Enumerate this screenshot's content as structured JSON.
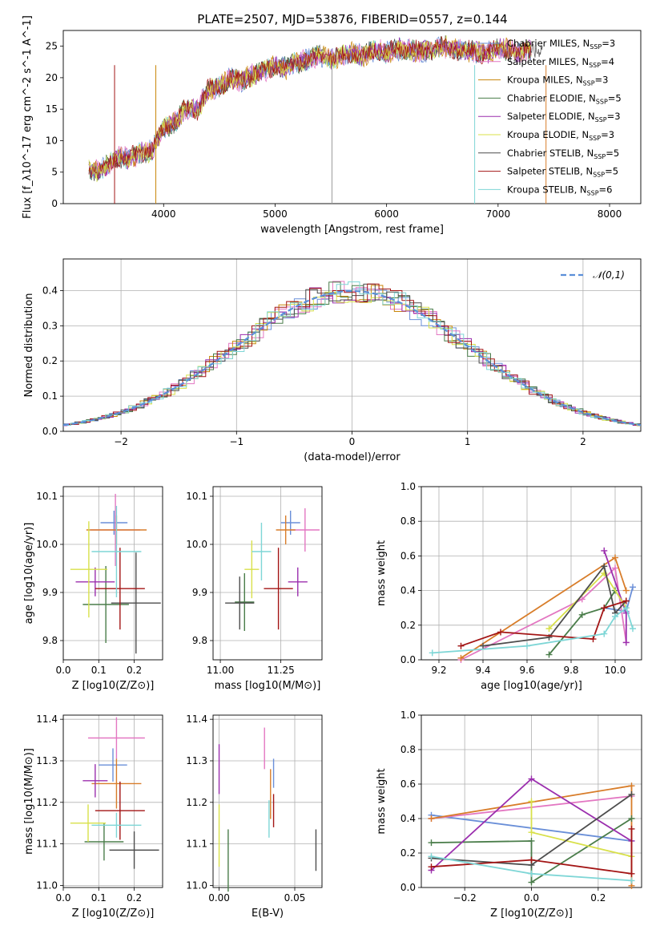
{
  "figure": {
    "title": "PLATE=2507, MJD=53876, FIBERID=0557, z=0.144"
  },
  "legend_entries": [
    {
      "label": "Chabrier MILES, N",
      "sub": "SSP",
      "suffix": "=3",
      "color": "#6a8fd8"
    },
    {
      "label": "Salpeter MILES, N",
      "sub": "SSP",
      "suffix": "=4",
      "color": "#e377c2"
    },
    {
      "label": "Kroupa MILES, N",
      "sub": "SSP",
      "suffix": "=3",
      "color": "#c8860a"
    },
    {
      "label": "Chabrier ELODIE, N",
      "sub": "SSP",
      "suffix": "=5",
      "color": "#4a7d4a"
    },
    {
      "label": "Salpeter ELODIE, N",
      "sub": "SSP",
      "suffix": "=3",
      "color": "#9b2fae"
    },
    {
      "label": "Kroupa ELODIE, N",
      "sub": "SSP",
      "suffix": "=3",
      "color": "#d8e04a"
    },
    {
      "label": "Chabrier STELIB, N",
      "sub": "SSP",
      "suffix": "=5",
      "color": "#4d4d4d"
    },
    {
      "label": "Salpeter STELIB, N",
      "sub": "SSP",
      "suffix": "=5",
      "color": "#a31515"
    },
    {
      "label": "Kroupa STELIB, N",
      "sub": "SSP",
      "suffix": "=6",
      "color": "#7ed6d6"
    }
  ],
  "chart_data": [
    {
      "id": "spectrum",
      "type": "line",
      "xlabel": "wavelength [Angstrom, rest frame]",
      "ylabel": "Flux [f_λ10^-17 erg cm^-2 s^-1 A^-1]",
      "xlim": [
        3100,
        8280
      ],
      "ylim": [
        0,
        27.5
      ],
      "xticks": [
        4000,
        5000,
        6000,
        7000,
        8000
      ],
      "yticks": [
        0,
        5,
        10,
        15,
        20,
        25
      ],
      "x": [
        3330,
        3400,
        3500,
        3600,
        3700,
        3800,
        3900,
        4000,
        4100,
        4200,
        4300,
        4400,
        4500,
        4600,
        4700,
        4800,
        4900,
        5000,
        5100,
        5200,
        5300,
        5400,
        5500,
        5600,
        5700,
        5800,
        5900,
        6000,
        6100,
        6200,
        6300,
        6400,
        6500,
        6600,
        6700,
        6800,
        6900,
        7000,
        7100,
        7200,
        7300,
        7400
      ],
      "y": [
        5.5,
        5.2,
        6.0,
        7.5,
        7.2,
        8.0,
        8.5,
        12.0,
        13.0,
        15.0,
        15.0,
        18.0,
        18.5,
        20.0,
        19.5,
        20.5,
        21.0,
        22.0,
        21.5,
        22.5,
        23.0,
        23.5,
        23.0,
        23.5,
        24.0,
        23.5,
        24.5,
        24.0,
        24.5,
        24.5,
        24.0,
        24.5,
        25.0,
        24.5,
        24.5,
        24.0,
        24.0,
        24.5,
        24.5,
        24.0,
        24.5,
        25.0
      ],
      "grid": false,
      "legend": "top-right"
    },
    {
      "id": "residual-hist",
      "type": "histogram",
      "xlabel": "(data-model)/error",
      "ylabel": "Normed distribution",
      "xlim": [
        -2.5,
        2.5
      ],
      "ylim": [
        0,
        0.49
      ],
      "xticks": [
        -2,
        -1,
        0,
        1,
        2
      ],
      "yticks": [
        0.0,
        0.1,
        0.2,
        0.3,
        0.4
      ],
      "grid": true,
      "reference": {
        "name": "𝒩(0,1)",
        "mean": 0,
        "sigma": 1,
        "color": "#5b8fd9"
      },
      "legend": "top-right"
    },
    {
      "id": "age-vs-Z",
      "type": "scatter",
      "xlabel": "Z [log10(Z/Z⊙)]",
      "ylabel": "age [log10(age/yr)]",
      "xlim": [
        0,
        0.28
      ],
      "ylim": [
        9.76,
        10.12
      ],
      "xticks": [
        0.0,
        0.1,
        0.2
      ],
      "yticks": [
        9.8,
        9.9,
        10.0,
        10.1
      ],
      "grid": true,
      "points": [
        {
          "x": 0.143,
          "y": 10.045,
          "xe": 0.038,
          "ye": 0.025,
          "color": "#6a8fd8"
        },
        {
          "x": 0.147,
          "y": 10.03,
          "xe": 0.07,
          "ye": 0.075,
          "color": "#e377c2"
        },
        {
          "x": 0.15,
          "y": 10.03,
          "xe": 0.085,
          "ye": 0.03,
          "color": "#d87d2a"
        },
        {
          "x": 0.12,
          "y": 9.875,
          "xe": 0.065,
          "ye": 0.08,
          "color": "#4a7d4a"
        },
        {
          "x": 0.09,
          "y": 9.922,
          "xe": 0.055,
          "ye": 0.03,
          "color": "#9b2fae"
        },
        {
          "x": 0.072,
          "y": 9.948,
          "xe": 0.052,
          "ye": 0.1,
          "color": "#d8e04a"
        },
        {
          "x": 0.205,
          "y": 9.878,
          "xe": 0.07,
          "ye": 0.105,
          "color": "#4d4d4d"
        },
        {
          "x": 0.16,
          "y": 9.908,
          "xe": 0.07,
          "ye": 0.085,
          "color": "#a31515"
        },
        {
          "x": 0.15,
          "y": 9.985,
          "xe": 0.07,
          "ye": 0.095,
          "color": "#7ed6d6"
        }
      ]
    },
    {
      "id": "age-vs-mass",
      "type": "scatter",
      "xlabel": "mass [log10(M/M⊙)]",
      "ylabel": "",
      "xlim": [
        10.97,
        11.42
      ],
      "ylim": [
        9.76,
        10.12
      ],
      "xticks": [
        11.0,
        11.25
      ],
      "yticks": [
        9.8,
        9.9,
        10.0,
        10.1
      ],
      "grid": true,
      "points": [
        {
          "x": 11.29,
          "y": 10.045,
          "xe": 0.04,
          "ye": 0.025,
          "color": "#6a8fd8"
        },
        {
          "x": 11.35,
          "y": 10.03,
          "xe": 0.06,
          "ye": 0.045,
          "color": "#e377c2"
        },
        {
          "x": 11.27,
          "y": 10.03,
          "xe": 0.04,
          "ye": 0.03,
          "color": "#d87d2a"
        },
        {
          "x": 11.1,
          "y": 9.88,
          "xe": 0.04,
          "ye": 0.06,
          "color": "#4a7d4a"
        },
        {
          "x": 11.32,
          "y": 9.922,
          "xe": 0.04,
          "ye": 0.03,
          "color": "#9b2fae"
        },
        {
          "x": 11.13,
          "y": 9.948,
          "xe": 0.03,
          "ye": 0.06,
          "color": "#d8e04a"
        },
        {
          "x": 11.08,
          "y": 9.878,
          "xe": 0.06,
          "ye": 0.055,
          "color": "#4d4d4d"
        },
        {
          "x": 11.24,
          "y": 9.908,
          "xe": 0.06,
          "ye": 0.085,
          "color": "#a31515"
        },
        {
          "x": 11.17,
          "y": 9.985,
          "xe": 0.04,
          "ye": 0.06,
          "color": "#7ed6d6"
        }
      ]
    },
    {
      "id": "weight-vs-age",
      "type": "line",
      "xlabel": "age [log10(age/yr)]",
      "ylabel": "mass weight",
      "xlim": [
        9.12,
        10.12
      ],
      "ylim": [
        0,
        1.0
      ],
      "xticks": [
        9.2,
        9.4,
        9.6,
        9.8,
        10.0
      ],
      "yticks": [
        0.0,
        0.2,
        0.4,
        0.6,
        0.8,
        1.0
      ],
      "grid": true,
      "series": [
        {
          "color": "#6a8fd8",
          "x": [
            9.95,
            10.05,
            10.08
          ],
          "y": [
            0.3,
            0.28,
            0.42
          ]
        },
        {
          "color": "#e377c2",
          "x": [
            9.3,
            9.85,
            10.0,
            10.05
          ],
          "y": [
            0.0,
            0.35,
            0.53,
            0.1
          ]
        },
        {
          "color": "#d87d2a",
          "x": [
            9.3,
            10.0,
            10.05
          ],
          "y": [
            0.01,
            0.59,
            0.4
          ]
        },
        {
          "color": "#4a7d4a",
          "x": [
            9.7,
            9.85,
            9.95,
            10.0
          ],
          "y": [
            0.03,
            0.26,
            0.3,
            0.4
          ]
        },
        {
          "color": "#9b2fae",
          "x": [
            9.95,
            10.05,
            10.05
          ],
          "y": [
            0.63,
            0.27,
            0.1
          ]
        },
        {
          "color": "#d8e04a",
          "x": [
            9.7,
            9.95,
            10.05
          ],
          "y": [
            0.18,
            0.5,
            0.3
          ]
        },
        {
          "color": "#4d4d4d",
          "x": [
            9.4,
            9.7,
            9.95,
            10.0,
            10.05
          ],
          "y": [
            0.08,
            0.13,
            0.54,
            0.27,
            0.34
          ]
        },
        {
          "color": "#a31515",
          "x": [
            9.3,
            9.48,
            9.9,
            9.95,
            10.05
          ],
          "y": [
            0.08,
            0.16,
            0.12,
            0.3,
            0.34
          ]
        },
        {
          "color": "#7ed6d6",
          "x": [
            9.17,
            9.6,
            9.95,
            10.0,
            10.05,
            10.08
          ],
          "y": [
            0.04,
            0.08,
            0.15,
            0.25,
            0.3,
            0.18
          ]
        }
      ]
    },
    {
      "id": "mass-vs-Z",
      "type": "scatter",
      "xlabel": "Z [log10(Z/Z⊙)]",
      "ylabel": "mass [log10(M/M⊙)]",
      "xlim": [
        0,
        0.28
      ],
      "ylim": [
        10.995,
        11.41
      ],
      "xticks": [
        0.0,
        0.1,
        0.2
      ],
      "yticks": [
        11.0,
        11.1,
        11.2,
        11.3,
        11.4
      ],
      "grid": true,
      "points": [
        {
          "x": 0.14,
          "y": 11.29,
          "xe": 0.04,
          "ye": 0.04,
          "color": "#6a8fd8"
        },
        {
          "x": 0.15,
          "y": 11.355,
          "xe": 0.08,
          "ye": 0.05,
          "color": "#e377c2"
        },
        {
          "x": 0.15,
          "y": 11.245,
          "xe": 0.07,
          "ye": 0.06,
          "color": "#d87d2a"
        },
        {
          "x": 0.115,
          "y": 11.105,
          "xe": 0.055,
          "ye": 0.045,
          "color": "#4a7d4a"
        },
        {
          "x": 0.09,
          "y": 11.252,
          "xe": 0.035,
          "ye": 0.04,
          "color": "#9b2fae"
        },
        {
          "x": 0.07,
          "y": 11.15,
          "xe": 0.05,
          "ye": 0.045,
          "color": "#d8e04a"
        },
        {
          "x": 0.2,
          "y": 11.085,
          "xe": 0.07,
          "ye": 0.045,
          "color": "#4d4d4d"
        },
        {
          "x": 0.16,
          "y": 11.18,
          "xe": 0.07,
          "ye": 0.07,
          "color": "#a31515"
        },
        {
          "x": 0.15,
          "y": 11.145,
          "xe": 0.07,
          "ye": 0.03,
          "color": "#7ed6d6"
        }
      ]
    },
    {
      "id": "mass-vs-EBV",
      "type": "scatter",
      "xlabel": "E(B-V)",
      "ylabel": "",
      "xlim": [
        -0.004,
        0.068
      ],
      "ylim": [
        10.995,
        11.41
      ],
      "xticks": [
        0.0,
        0.05
      ],
      "yticks": [
        11.0,
        11.1,
        11.2,
        11.3,
        11.4
      ],
      "grid": true,
      "points": [
        {
          "x": 0.036,
          "y": 11.27,
          "xe": 0.0,
          "ye": 0.035,
          "color": "#6a8fd8"
        },
        {
          "x": 0.03,
          "y": 11.33,
          "xe": 0.0,
          "ye": 0.05,
          "color": "#e377c2"
        },
        {
          "x": 0.034,
          "y": 11.22,
          "xe": 0.0,
          "ye": 0.06,
          "color": "#d87d2a"
        },
        {
          "x": 0.006,
          "y": 11.06,
          "xe": 0.0,
          "ye": 0.075,
          "color": "#4a7d4a"
        },
        {
          "x": 0.0,
          "y": 11.28,
          "xe": 0.0,
          "ye": 0.06,
          "color": "#9b2fae"
        },
        {
          "x": 0.0,
          "y": 11.12,
          "xe": 0.0,
          "ye": 0.075,
          "color": "#d8e04a"
        },
        {
          "x": 0.064,
          "y": 11.085,
          "xe": 0.0,
          "ye": 0.05,
          "color": "#4d4d4d"
        },
        {
          "x": 0.036,
          "y": 11.18,
          "xe": 0.0,
          "ye": 0.04,
          "color": "#a31515"
        },
        {
          "x": 0.033,
          "y": 11.16,
          "xe": 0.0,
          "ye": 0.045,
          "color": "#7ed6d6"
        }
      ]
    },
    {
      "id": "weight-vs-Z",
      "type": "line",
      "xlabel": "Z [log10(Z/Z⊙)]",
      "ylabel": "mass weight",
      "xlim": [
        -0.33,
        0.33
      ],
      "ylim": [
        0,
        1.0
      ],
      "xticks": [
        -0.2,
        0.0,
        0.2
      ],
      "yticks": [
        0.0,
        0.2,
        0.4,
        0.6,
        0.8,
        1.0
      ],
      "grid": true,
      "series": [
        {
          "color": "#6a8fd8",
          "x": [
            -0.3,
            0.3
          ],
          "y": [
            0.42,
            0.27
          ]
        },
        {
          "color": "#e377c2",
          "x": [
            -0.3,
            0.3
          ],
          "y": [
            0.4,
            0.53
          ]
        },
        {
          "color": "#d87d2a",
          "x": [
            -0.3,
            0.3,
            0.3
          ],
          "y": [
            0.4,
            0.59,
            0.01
          ]
        },
        {
          "color": "#4a7d4a",
          "x": [
            -0.3,
            0.0,
            0.0,
            0.3
          ],
          "y": [
            0.26,
            0.27,
            0.03,
            0.4
          ]
        },
        {
          "color": "#9b2fae",
          "x": [
            -0.3,
            0.0,
            0.3
          ],
          "y": [
            0.1,
            0.63,
            0.27
          ]
        },
        {
          "color": "#d8e04a",
          "x": [
            0.0,
            0.0,
            0.3
          ],
          "y": [
            0.5,
            0.32,
            0.18
          ]
        },
        {
          "color": "#4d4d4d",
          "x": [
            -0.3,
            0.0,
            0.3
          ],
          "y": [
            0.17,
            0.13,
            0.54
          ]
        },
        {
          "color": "#a31515",
          "x": [
            -0.3,
            0.0,
            0.3,
            0.3
          ],
          "y": [
            0.12,
            0.16,
            0.08,
            0.34
          ]
        },
        {
          "color": "#7ed6d6",
          "x": [
            -0.3,
            0.0,
            0.3
          ],
          "y": [
            0.18,
            0.08,
            0.04
          ]
        }
      ]
    }
  ]
}
